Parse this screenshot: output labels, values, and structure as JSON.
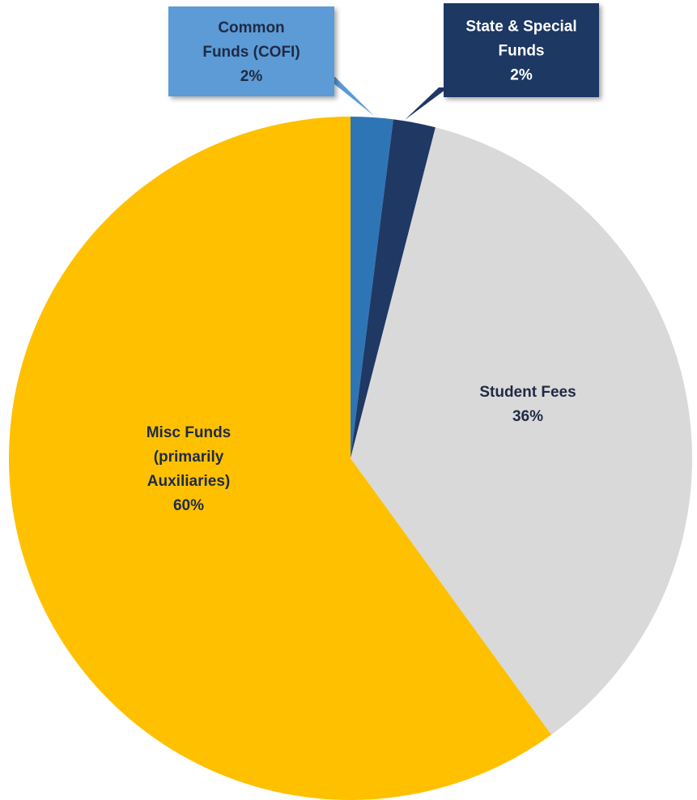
{
  "chart_data": {
    "type": "pie",
    "title": "",
    "slices": [
      {
        "label_lines": [
          "Common",
          "Funds (COFI)"
        ],
        "percent_label": "2%",
        "value": 2,
        "color": "#2e75b6",
        "label_style": "callout",
        "callout_bg": "#5b9bd5",
        "text_color": "#1f2a44"
      },
      {
        "label_lines": [
          "State & Special",
          "Funds"
        ],
        "percent_label": "2%",
        "value": 2,
        "color": "#1f3864",
        "label_style": "callout",
        "callout_bg": "#1f3864",
        "text_color": "#ffffff"
      },
      {
        "label_lines": [
          "Student Fees"
        ],
        "percent_label": "36%",
        "value": 36,
        "color": "#d9d9d9",
        "label_style": "inside",
        "text_color": "#1f2a44"
      },
      {
        "label_lines": [
          "Misc Funds",
          "(primarily",
          "Auxiliaries)"
        ],
        "percent_label": "60%",
        "value": 60,
        "color": "#ffc000",
        "label_style": "inside",
        "text_color": "#1f2a44"
      }
    ],
    "start_angle": "top",
    "direction": "clockwise",
    "legend": "none"
  }
}
